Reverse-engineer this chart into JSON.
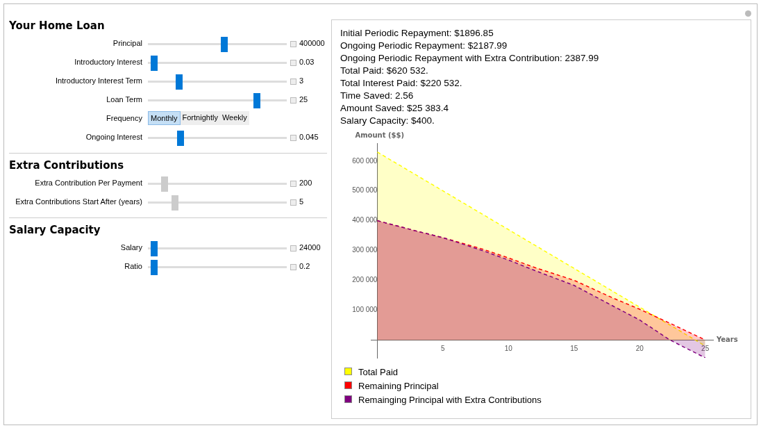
{
  "chart_data": [
    {
      "type": "other",
      "title": "Your Home Loan",
      "categories": [
        "Principal",
        "Introductory Interest",
        "Introductory Interest Term",
        "Loan Term",
        "Frequency",
        "Ongoing Interest"
      ],
      "value_labels": [
        "400000",
        "0.03",
        "3",
        "25",
        null,
        "0.045"
      ],
      "annotations": [
        "Monthly",
        "Fortnightly",
        "Weekly"
      ]
    },
    {
      "type": "other",
      "title": "Extra Contributions",
      "categories": [
        "Extra Contribution Per Payment",
        "Extra Contributions Start After (years)"
      ],
      "value_labels": [
        "200",
        "5"
      ]
    },
    {
      "type": "other",
      "title": "Salary Capacity",
      "categories": [
        "Salary",
        "Ratio"
      ],
      "value_labels": [
        "24000",
        "0.2"
      ]
    },
    {
      "type": "area",
      "xlabel": "Years",
      "ylabel": "Amount ($$)",
      "annotations": [
        "Initial Periodic Repayment: $1896.85",
        "Ongoing Periodic Repayment: $2187.99",
        "Ongoing Periodic Repayment with Extra Contribution: 2387.99",
        "Total Paid: $620 532.",
        "Total Interest Paid: $220 532.",
        "Time Saved: 2.56",
        "Amount Saved: $25 383.4",
        "Salary Capacity: $400."
      ],
      "xlim": [
        -0.5,
        25.6
      ],
      "xticks": [
        5,
        10,
        15,
        20,
        25
      ],
      "ylim": [
        -60000,
        660000
      ],
      "yticks": [
        {
          "value": 100000,
          "label": "100 000"
        },
        {
          "value": 200000,
          "label": "200 000"
        },
        {
          "value": 300000,
          "label": "300 000"
        },
        {
          "value": 400000,
          "label": "400 000"
        },
        {
          "value": 500000,
          "label": "500 000"
        },
        {
          "value": 600000,
          "label": "600 000"
        }
      ],
      "grid": false,
      "legend": "bottom",
      "line_style": "dashed",
      "series": [
        {
          "name": "Total Paid",
          "color": "#ffff00",
          "x": [
            0,
            5,
            10,
            15,
            20,
            25
          ],
          "values": [
            630000,
            500000,
            370000,
            240000,
            110000,
            -20000
          ]
        },
        {
          "name": "Remaining Principal",
          "color": "#ff0000",
          "x": [
            0,
            3,
            5,
            8,
            10,
            12,
            15,
            18,
            20,
            22.5,
            25
          ],
          "values": [
            400000,
            365000,
            343000,
            305000,
            275000,
            243000,
            200000,
            140000,
            103000,
            52000,
            0
          ]
        },
        {
          "name": "Remainging Principal with Extra Contributions",
          "color": "#800080",
          "x": [
            0,
            3,
            5,
            8,
            10,
            12,
            15,
            18,
            20,
            22.3,
            25
          ],
          "values": [
            400000,
            365000,
            343000,
            300000,
            268000,
            233000,
            183000,
            113000,
            67000,
            0,
            -60000
          ]
        }
      ]
    }
  ]
}
